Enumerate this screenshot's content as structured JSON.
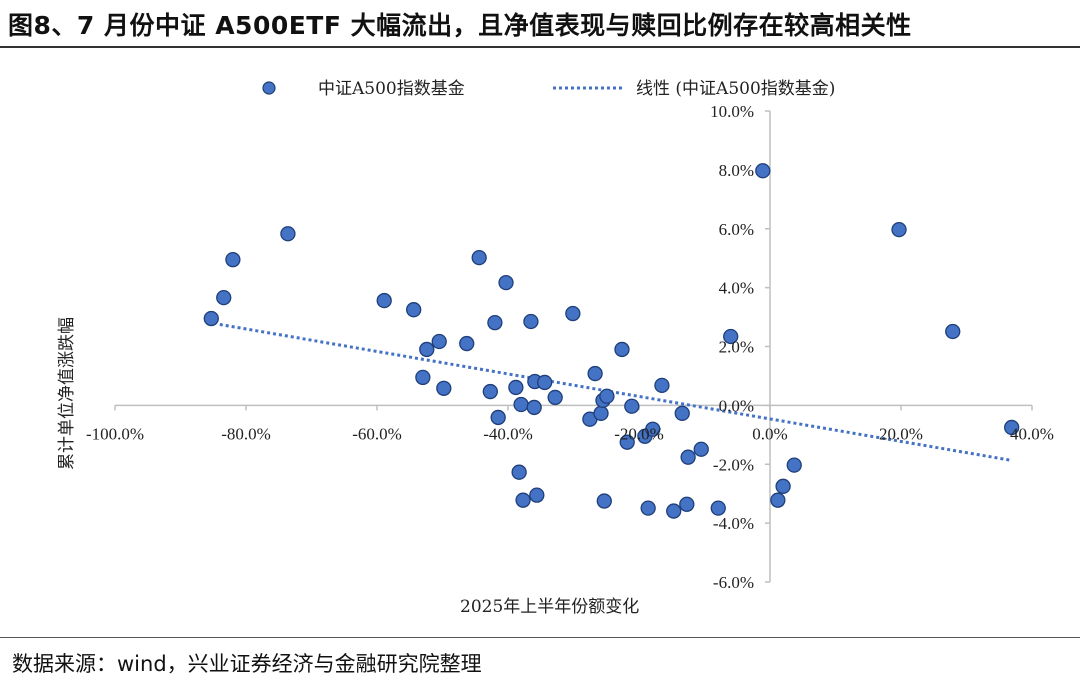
{
  "title": "图8、7 月份中证 A500ETF 大幅流出，且净值表现与赎回比例存在较高相关性",
  "source": "数据来源：wind，兴业证券经济与金融研究院整理",
  "colors": {
    "point_fill": "#4472C4",
    "point_edge": "#1F3F7A",
    "trend": "#4472C4",
    "axis": "#BFBFBF"
  },
  "chart_data": {
    "type": "scatter",
    "title": "图8、7 月份中证 A500ETF 大幅流出，且净值表现与赎回比例存在较高相关性",
    "xlabel": "2025年上半年份额变化",
    "ylabel": "累计单位净值涨跌幅",
    "xlim": [
      -100,
      40
    ],
    "ylim": [
      -6,
      10
    ],
    "xticks": [
      -100,
      -80,
      -60,
      -40,
      -20,
      0,
      20,
      40
    ],
    "yticks": [
      -6,
      -4,
      -2,
      0,
      2,
      4,
      6,
      8,
      10
    ],
    "xtick_labels": [
      "-100.0%",
      "-80.0%",
      "-60.0%",
      "-40.0%",
      "-20.0%",
      "0.0%",
      "20.0%",
      "40.0%"
    ],
    "ytick_labels": [
      "-6.0%",
      "-4.0%",
      "-2.0%",
      "0.0%",
      "2.0%",
      "4.0%",
      "6.0%",
      "8.0%",
      "10.0%"
    ],
    "legend": {
      "position": "top",
      "entries": [
        "中证A500指数基金",
        "线性 (中证A500指数基金)"
      ]
    },
    "series": [
      {
        "name": "中证A500指数基金",
        "points": [
          [
            -85.3,
            2.95
          ],
          [
            -83.4,
            3.66
          ],
          [
            -82.0,
            4.95
          ],
          [
            -73.6,
            5.83
          ],
          [
            -58.9,
            3.56
          ],
          [
            -54.4,
            3.25
          ],
          [
            -52.4,
            1.9
          ],
          [
            -50.5,
            2.17
          ],
          [
            -53.0,
            0.95
          ],
          [
            -49.8,
            0.58
          ],
          [
            -46.3,
            2.1
          ],
          [
            -44.4,
            5.02
          ],
          [
            -40.3,
            4.17
          ],
          [
            -42.0,
            2.81
          ],
          [
            -42.7,
            0.47
          ],
          [
            -41.5,
            -0.41
          ],
          [
            -38.8,
            0.61
          ],
          [
            -38.0,
            0.03
          ],
          [
            -36.0,
            -0.07
          ],
          [
            -36.5,
            2.85
          ],
          [
            -35.9,
            0.81
          ],
          [
            -34.4,
            0.78
          ],
          [
            -32.8,
            0.27
          ],
          [
            -30.1,
            3.12
          ],
          [
            -38.3,
            -2.27
          ],
          [
            -37.7,
            -3.22
          ],
          [
            -35.6,
            -3.05
          ],
          [
            -26.7,
            1.08
          ],
          [
            -27.5,
            -0.47
          ],
          [
            -25.8,
            -0.27
          ],
          [
            -25.5,
            0.17
          ],
          [
            -24.9,
            0.31
          ],
          [
            -22.6,
            1.9
          ],
          [
            -21.1,
            -0.03
          ],
          [
            -21.8,
            -1.25
          ],
          [
            -25.3,
            -3.25
          ],
          [
            -19.1,
            -1.05
          ],
          [
            -17.9,
            -0.81
          ],
          [
            -16.5,
            0.68
          ],
          [
            -18.6,
            -3.49
          ],
          [
            -14.7,
            -3.59
          ],
          [
            -12.7,
            -3.36
          ],
          [
            -13.4,
            -0.27
          ],
          [
            -12.5,
            -1.76
          ],
          [
            -10.5,
            -1.49
          ],
          [
            -7.9,
            -3.49
          ],
          [
            -6.0,
            2.34
          ],
          [
            -1.1,
            7.97
          ],
          [
            1.2,
            -3.22
          ],
          [
            2.0,
            -2.75
          ],
          [
            3.7,
            -2.03
          ],
          [
            19.7,
            5.97
          ],
          [
            27.9,
            2.51
          ],
          [
            36.9,
            -0.75
          ]
        ]
      }
    ],
    "trendline": {
      "name": "线性 (中证A500指数基金)",
      "type": "linear",
      "x_range": [
        -84,
        36.7
      ],
      "slope": -0.0382,
      "intercept": -0.46
    }
  }
}
